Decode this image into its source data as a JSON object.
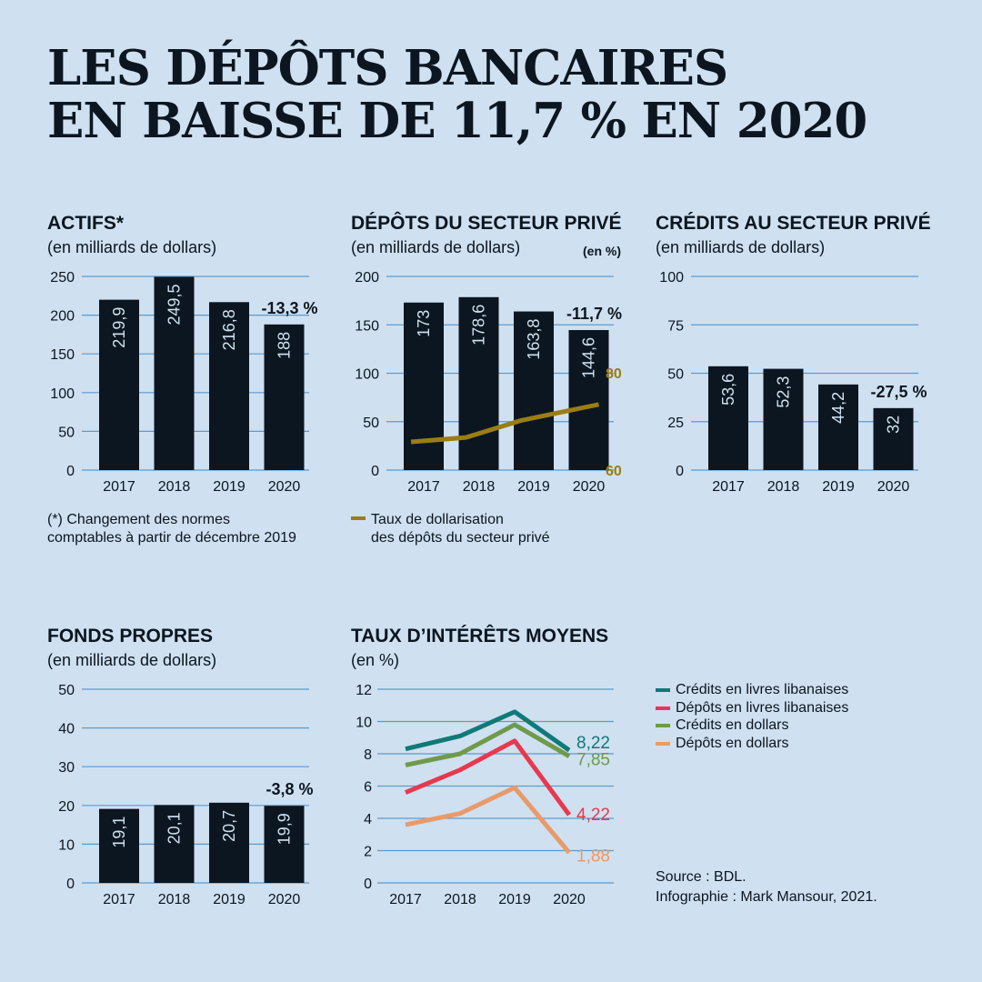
{
  "title": {
    "line1": "LES DÉPÔTS BANCAIRES",
    "line2": "EN BAISSE DE 11,7 % EN 2020"
  },
  "colors": {
    "bar": "#0b1620",
    "grid": "#5b9bd0",
    "bar_label": "#cfe0f0",
    "gold": "#9a7d13",
    "teal": "#0f7a78",
    "red": "#e8384f",
    "green": "#6f9a4a",
    "orange": "#e89a6a"
  },
  "notes": {
    "actifs": "(*) Changement des normes\ncomptables à partir de décembre 2019",
    "depots_legend": "Taux de dollarisation\ndes dépôts du secteur privé"
  },
  "source": {
    "line1": "Source : BDL.",
    "line2": "Infographie : Mark Mansour, 2021."
  },
  "chart_data": [
    {
      "id": "actifs",
      "type": "bar",
      "title": "ACTIFS*",
      "subtitle": "(en milliards de dollars)",
      "categories": [
        "2017",
        "2018",
        "2019",
        "2020"
      ],
      "values": [
        219.9,
        249.5,
        216.8,
        188
      ],
      "value_labels": [
        "219,9",
        "249,5",
        "216,8",
        "188"
      ],
      "ylim": [
        0,
        250
      ],
      "yticks": [
        0,
        50,
        100,
        150,
        200,
        250
      ],
      "annotation": "-13,3 %"
    },
    {
      "id": "depots",
      "type": "bar",
      "title": "DÉPÔTS DU SECTEUR PRIVÉ",
      "subtitle": "(en milliards de dollars)",
      "secondary_axis_label": "(en %)",
      "categories": [
        "2017",
        "2018",
        "2019",
        "2020"
      ],
      "values": [
        173,
        178.6,
        163.8,
        144.6
      ],
      "value_labels": [
        "173",
        "178,6",
        "163,8",
        "144,6"
      ],
      "ylim": [
        0,
        200
      ],
      "yticks": [
        0,
        50,
        100,
        150,
        200
      ],
      "annotation": "-11,7 %",
      "line_series": {
        "name": "Taux de dollarisation des dépôts du secteur privé",
        "values": [
          65.8,
          66.7,
          70.2,
          73.5
        ],
        "ylim": [
          60,
          80
        ],
        "yticks": [
          60,
          80
        ]
      }
    },
    {
      "id": "credits",
      "type": "bar",
      "title": "CRÉDITS AU SECTEUR PRIVÉ",
      "subtitle": "(en milliards de dollars)",
      "categories": [
        "2017",
        "2018",
        "2019",
        "2020"
      ],
      "values": [
        53.6,
        52.3,
        44.2,
        32
      ],
      "value_labels": [
        "53,6",
        "52,3",
        "44,2",
        "32"
      ],
      "ylim": [
        0,
        100
      ],
      "yticks": [
        0,
        25,
        50,
        75,
        100
      ],
      "annotation": "-27,5 %"
    },
    {
      "id": "fonds",
      "type": "bar",
      "title": "FONDS PROPRES",
      "subtitle": "(en milliards de dollars)",
      "categories": [
        "2017",
        "2018",
        "2019",
        "2020"
      ],
      "values": [
        19.1,
        20.1,
        20.7,
        19.9
      ],
      "value_labels": [
        "19,1",
        "20,1",
        "20,7",
        "19,9"
      ],
      "ylim": [
        0,
        50
      ],
      "yticks": [
        0,
        10,
        20,
        30,
        40,
        50
      ],
      "annotation": "-3,8 %"
    },
    {
      "id": "taux",
      "type": "line",
      "title": "TAUX D’INTÉRÊTS MOYENS",
      "subtitle": "(en %)",
      "x": [
        "2017",
        "2018",
        "2019",
        "2020"
      ],
      "ylim": [
        0,
        12
      ],
      "yticks": [
        0,
        2,
        4,
        6,
        8,
        10,
        12
      ],
      "series": [
        {
          "name": "Crédits en livres libanaises",
          "color_key": "teal",
          "values": [
            8.3,
            9.1,
            10.6,
            8.22
          ],
          "end_label": "8,22"
        },
        {
          "name": "Dépôts en livres libanaises",
          "color_key": "red",
          "values": [
            5.6,
            7.0,
            8.8,
            4.22
          ],
          "end_label": "4,22"
        },
        {
          "name": "Crédits en dollars",
          "color_key": "green",
          "values": [
            7.3,
            8.0,
            9.8,
            7.85
          ],
          "end_label": "7,85"
        },
        {
          "name": "Dépôts en dollars",
          "color_key": "orange",
          "values": [
            3.6,
            4.3,
            5.9,
            1.88
          ],
          "end_label": "1,88"
        }
      ]
    }
  ]
}
